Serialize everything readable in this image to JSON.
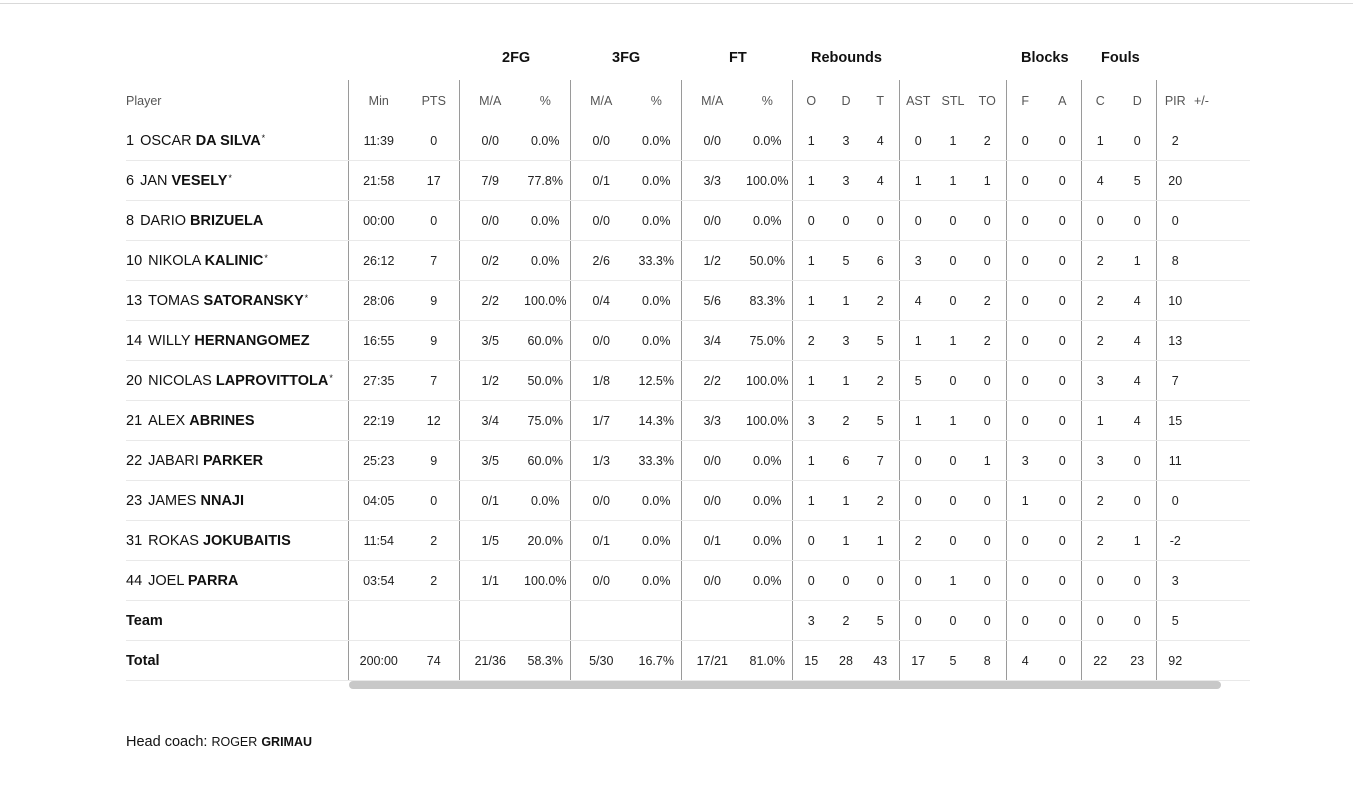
{
  "header_groups": {
    "fg2": "2FG",
    "fg3": "3FG",
    "ft": "FT",
    "rebounds": "Rebounds",
    "blocks": "Blocks",
    "fouls": "Fouls"
  },
  "columns": {
    "player": "Player",
    "min": "Min",
    "pts": "PTS",
    "fg2_ma": "M/A",
    "fg2_pct": "%",
    "fg3_ma": "M/A",
    "fg3_pct": "%",
    "ft_ma": "M/A",
    "ft_pct": "%",
    "reb_o": "O",
    "reb_d": "D",
    "reb_t": "T",
    "ast": "AST",
    "stl": "STL",
    "to": "TO",
    "blk_f": "F",
    "blk_a": "A",
    "foul_c": "C",
    "foul_d": "D",
    "pir": "PIR",
    "plus_minus": "+/-"
  },
  "players": [
    {
      "num": "1",
      "first": "OSCAR",
      "last": "DA SILVA",
      "star": "*",
      "min": "11:39",
      "pts": "0",
      "fg2": "0/0",
      "fg2p": "0.0%",
      "fg3": "0/0",
      "fg3p": "0.0%",
      "ft": "0/0",
      "ftp": "0.0%",
      "o": "1",
      "d": "3",
      "t": "4",
      "ast": "0",
      "stl": "1",
      "to": "2",
      "bf": "0",
      "ba": "0",
      "fc": "1",
      "fd": "0",
      "pir": "2",
      "pm": ""
    },
    {
      "num": "6",
      "first": "JAN",
      "last": "VESELY",
      "star": "*",
      "min": "21:58",
      "pts": "17",
      "fg2": "7/9",
      "fg2p": "77.8%",
      "fg3": "0/1",
      "fg3p": "0.0%",
      "ft": "3/3",
      "ftp": "100.0%",
      "o": "1",
      "d": "3",
      "t": "4",
      "ast": "1",
      "stl": "1",
      "to": "1",
      "bf": "0",
      "ba": "0",
      "fc": "4",
      "fd": "5",
      "pir": "20",
      "pm": ""
    },
    {
      "num": "8",
      "first": "DARIO",
      "last": "BRIZUELA",
      "star": "",
      "min": "00:00",
      "pts": "0",
      "fg2": "0/0",
      "fg2p": "0.0%",
      "fg3": "0/0",
      "fg3p": "0.0%",
      "ft": "0/0",
      "ftp": "0.0%",
      "o": "0",
      "d": "0",
      "t": "0",
      "ast": "0",
      "stl": "0",
      "to": "0",
      "bf": "0",
      "ba": "0",
      "fc": "0",
      "fd": "0",
      "pir": "0",
      "pm": ""
    },
    {
      "num": "10",
      "first": "NIKOLA",
      "last": "KALINIC",
      "star": "*",
      "min": "26:12",
      "pts": "7",
      "fg2": "0/2",
      "fg2p": "0.0%",
      "fg3": "2/6",
      "fg3p": "33.3%",
      "ft": "1/2",
      "ftp": "50.0%",
      "o": "1",
      "d": "5",
      "t": "6",
      "ast": "3",
      "stl": "0",
      "to": "0",
      "bf": "0",
      "ba": "0",
      "fc": "2",
      "fd": "1",
      "pir": "8",
      "pm": ""
    },
    {
      "num": "13",
      "first": "TOMAS",
      "last": "SATORANSKY",
      "star": "*",
      "min": "28:06",
      "pts": "9",
      "fg2": "2/2",
      "fg2p": "100.0%",
      "fg3": "0/4",
      "fg3p": "0.0%",
      "ft": "5/6",
      "ftp": "83.3%",
      "o": "1",
      "d": "1",
      "t": "2",
      "ast": "4",
      "stl": "0",
      "to": "2",
      "bf": "0",
      "ba": "0",
      "fc": "2",
      "fd": "4",
      "pir": "10",
      "pm": ""
    },
    {
      "num": "14",
      "first": "WILLY",
      "last": "HERNANGOMEZ",
      "star": "",
      "min": "16:55",
      "pts": "9",
      "fg2": "3/5",
      "fg2p": "60.0%",
      "fg3": "0/0",
      "fg3p": "0.0%",
      "ft": "3/4",
      "ftp": "75.0%",
      "o": "2",
      "d": "3",
      "t": "5",
      "ast": "1",
      "stl": "1",
      "to": "2",
      "bf": "0",
      "ba": "0",
      "fc": "2",
      "fd": "4",
      "pir": "13",
      "pm": ""
    },
    {
      "num": "20",
      "first": "NICOLAS",
      "last": "LAPROVITTOLA",
      "star": "*",
      "min": "27:35",
      "pts": "7",
      "fg2": "1/2",
      "fg2p": "50.0%",
      "fg3": "1/8",
      "fg3p": "12.5%",
      "ft": "2/2",
      "ftp": "100.0%",
      "o": "1",
      "d": "1",
      "t": "2",
      "ast": "5",
      "stl": "0",
      "to": "0",
      "bf": "0",
      "ba": "0",
      "fc": "3",
      "fd": "4",
      "pir": "7",
      "pm": ""
    },
    {
      "num": "21",
      "first": "ALEX",
      "last": "ABRINES",
      "star": "",
      "min": "22:19",
      "pts": "12",
      "fg2": "3/4",
      "fg2p": "75.0%",
      "fg3": "1/7",
      "fg3p": "14.3%",
      "ft": "3/3",
      "ftp": "100.0%",
      "o": "3",
      "d": "2",
      "t": "5",
      "ast": "1",
      "stl": "1",
      "to": "0",
      "bf": "0",
      "ba": "0",
      "fc": "1",
      "fd": "4",
      "pir": "15",
      "pm": ""
    },
    {
      "num": "22",
      "first": "JABARI",
      "last": "PARKER",
      "star": "",
      "min": "25:23",
      "pts": "9",
      "fg2": "3/5",
      "fg2p": "60.0%",
      "fg3": "1/3",
      "fg3p": "33.3%",
      "ft": "0/0",
      "ftp": "0.0%",
      "o": "1",
      "d": "6",
      "t": "7",
      "ast": "0",
      "stl": "0",
      "to": "1",
      "bf": "3",
      "ba": "0",
      "fc": "3",
      "fd": "0",
      "pir": "11",
      "pm": ""
    },
    {
      "num": "23",
      "first": "JAMES",
      "last": "NNAJI",
      "star": "",
      "min": "04:05",
      "pts": "0",
      "fg2": "0/1",
      "fg2p": "0.0%",
      "fg3": "0/0",
      "fg3p": "0.0%",
      "ft": "0/0",
      "ftp": "0.0%",
      "o": "1",
      "d": "1",
      "t": "2",
      "ast": "0",
      "stl": "0",
      "to": "0",
      "bf": "1",
      "ba": "0",
      "fc": "2",
      "fd": "0",
      "pir": "0",
      "pm": ""
    },
    {
      "num": "31",
      "first": "ROKAS",
      "last": "JOKUBAITIS",
      "star": "",
      "min": "11:54",
      "pts": "2",
      "fg2": "1/5",
      "fg2p": "20.0%",
      "fg3": "0/1",
      "fg3p": "0.0%",
      "ft": "0/1",
      "ftp": "0.0%",
      "o": "0",
      "d": "1",
      "t": "1",
      "ast": "2",
      "stl": "0",
      "to": "0",
      "bf": "0",
      "ba": "0",
      "fc": "2",
      "fd": "1",
      "pir": "-2",
      "pm": ""
    },
    {
      "num": "44",
      "first": "JOEL",
      "last": "PARRA",
      "star": "",
      "min": "03:54",
      "pts": "2",
      "fg2": "1/1",
      "fg2p": "100.0%",
      "fg3": "0/0",
      "fg3p": "0.0%",
      "ft": "0/0",
      "ftp": "0.0%",
      "o": "0",
      "d": "0",
      "t": "0",
      "ast": "0",
      "stl": "1",
      "to": "0",
      "bf": "0",
      "ba": "0",
      "fc": "0",
      "fd": "0",
      "pir": "3",
      "pm": ""
    }
  ],
  "team_row": {
    "label": "Team",
    "min": "",
    "pts": "",
    "fg2": "",
    "fg2p": "",
    "fg3": "",
    "fg3p": "",
    "ft": "",
    "ftp": "",
    "o": "3",
    "d": "2",
    "t": "5",
    "ast": "0",
    "stl": "0",
    "to": "0",
    "bf": "0",
    "ba": "0",
    "fc": "0",
    "fd": "0",
    "pir": "5",
    "pm": ""
  },
  "total_row": {
    "label": "Total",
    "min": "200:00",
    "pts": "74",
    "fg2": "21/36",
    "fg2p": "58.3%",
    "fg3": "5/30",
    "fg3p": "16.7%",
    "ft": "17/21",
    "ftp": "81.0%",
    "o": "15",
    "d": "28",
    "t": "43",
    "ast": "17",
    "stl": "5",
    "to": "8",
    "bf": "4",
    "ba": "0",
    "fc": "22",
    "fd": "23",
    "pir": "92",
    "pm": ""
  },
  "coach": {
    "label": "Head coach:",
    "first": "ROGER",
    "last": "GRIMAU"
  },
  "colors": {
    "separator": "#9a9a9a",
    "row_border": "#e9e9e9",
    "scrollbar": "#c8c8c8",
    "header_text": "#555555"
  }
}
